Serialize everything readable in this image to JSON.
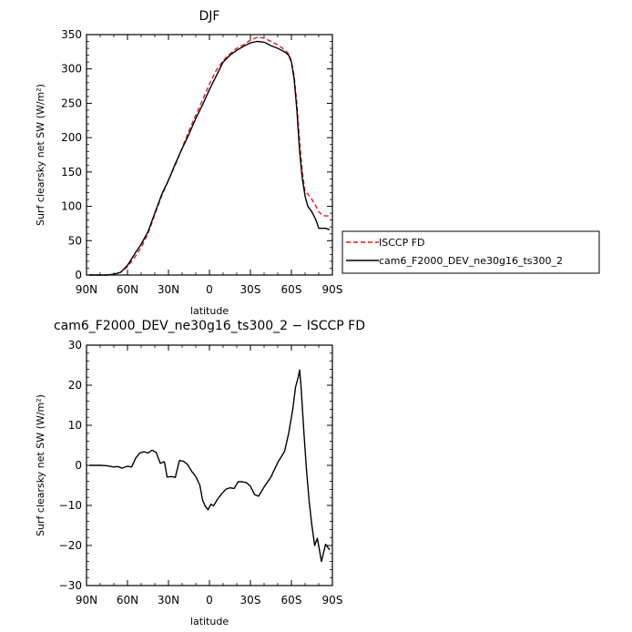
{
  "chart_data": [
    {
      "type": "line",
      "title": "DJF",
      "xlabel": "latitude",
      "ylabel": "Surf clearsky net SW (W/m²)",
      "xlim": [
        -90,
        90
      ],
      "ylim": [
        0,
        350
      ],
      "xticks": [
        -90,
        -60,
        -30,
        0,
        30,
        60,
        90
      ],
      "xtick_labels": [
        "90N",
        "60N",
        "30N",
        "0",
        "30S",
        "60S",
        "90S"
      ],
      "yticks": [
        0,
        50,
        100,
        150,
        200,
        250,
        300,
        350
      ],
      "ytick_labels": [
        "0",
        "50",
        "100",
        "150",
        "200",
        "250",
        "300",
        "350"
      ],
      "legend_position": "right",
      "series": [
        {
          "name": "ISCCP FD",
          "color": "#e8141b",
          "dash": "dashed",
          "x": [
            -88,
            -85,
            -80,
            -75,
            -70,
            -65,
            -60,
            -55,
            -50,
            -45,
            -40,
            -35,
            -30,
            -25,
            -20,
            -15,
            -10,
            -5,
            0,
            5,
            10,
            15,
            20,
            25,
            30,
            35,
            40,
            45,
            50,
            55,
            58,
            60,
            62,
            64,
            66,
            68,
            70,
            72,
            75,
            78,
            80,
            83,
            85,
            88
          ],
          "y": [
            0,
            0,
            0,
            0,
            1,
            4,
            12,
            25,
            40,
            60,
            88,
            115,
            138,
            160,
            185,
            210,
            233,
            255,
            278,
            298,
            312,
            322,
            330,
            335,
            342,
            346,
            345,
            340,
            335,
            328,
            322,
            312,
            290,
            250,
            195,
            150,
            120,
            118,
            110,
            100,
            92,
            87,
            86,
            86
          ]
        },
        {
          "name": "cam6_F2000_DEV_ne30g16_ts300_2",
          "color": "#000000",
          "dash": "solid",
          "x": [
            -88,
            -85,
            -80,
            -75,
            -70,
            -65,
            -60,
            -55,
            -50,
            -45,
            -40,
            -35,
            -30,
            -25,
            -20,
            -15,
            -10,
            -5,
            0,
            5,
            10,
            15,
            20,
            25,
            30,
            35,
            40,
            45,
            50,
            55,
            58,
            60,
            62,
            64,
            66,
            68,
            70,
            72,
            75,
            78,
            80,
            83,
            85,
            88
          ],
          "y": [
            0,
            0,
            0,
            0,
            1,
            4,
            14,
            30,
            45,
            63,
            90,
            117,
            138,
            162,
            184,
            205,
            228,
            248,
            270,
            290,
            310,
            320,
            327,
            333,
            338,
            340,
            339,
            334,
            330,
            325,
            320,
            310,
            285,
            240,
            180,
            140,
            115,
            100,
            92,
            80,
            68,
            68,
            68,
            66
          ]
        }
      ]
    },
    {
      "type": "line",
      "title": "cam6_F2000_DEV_ne30g16_ts300_2 − ISCCP FD",
      "xlabel": "latitude",
      "ylabel": "Surf clearsky net SW (W/m²)",
      "xlim": [
        -90,
        90
      ],
      "ylim": [
        -30,
        30
      ],
      "xticks": [
        -90,
        -60,
        -30,
        0,
        30,
        60,
        90
      ],
      "xtick_labels": [
        "90N",
        "60N",
        "30N",
        "0",
        "30S",
        "60S",
        "90S"
      ],
      "yticks": [
        -30,
        -20,
        -10,
        0,
        10,
        20,
        30
      ],
      "ytick_labels": [
        "−30",
        "−20",
        "−10",
        "0",
        "10",
        "20",
        "30"
      ],
      "series": [
        {
          "color": "#000000",
          "dash": "solid",
          "x": [
            -88,
            -80,
            -75,
            -70,
            -67,
            -64,
            -60,
            -57,
            -54,
            -51,
            -48,
            -45,
            -42,
            -39,
            -36,
            -33,
            -31,
            -28,
            -25,
            -22,
            -19,
            -16,
            -13,
            -10,
            -7,
            -5,
            -3,
            -1,
            1,
            3,
            6,
            9,
            12,
            15,
            18,
            21,
            24,
            27,
            30,
            33,
            36,
            40,
            45,
            50,
            55,
            58,
            61,
            63,
            65,
            66,
            67,
            69,
            71,
            73,
            75,
            77,
            79,
            82,
            85,
            88
          ],
          "y": [
            0,
            0,
            -0.1,
            -0.4,
            -0.3,
            -0.7,
            -0.2,
            -0.4,
            1.8,
            3.1,
            3.4,
            3.1,
            3.8,
            3.2,
            0.5,
            0.9,
            -2.9,
            -2.8,
            -3,
            1.2,
            1,
            0.2,
            -1.5,
            -2.8,
            -5,
            -8.7,
            -10.2,
            -11.1,
            -9.7,
            -10.1,
            -8.4,
            -7.1,
            -6,
            -5.6,
            -5.8,
            -4.1,
            -4.1,
            -4.3,
            -5.2,
            -7.3,
            -7.7,
            -5.4,
            -2.9,
            0.7,
            3.5,
            8,
            14,
            19.5,
            22,
            23.8,
            20,
            9,
            -1,
            -9,
            -15,
            -20,
            -18.2,
            -24,
            -19.7,
            -21.1
          ]
        }
      ]
    }
  ]
}
